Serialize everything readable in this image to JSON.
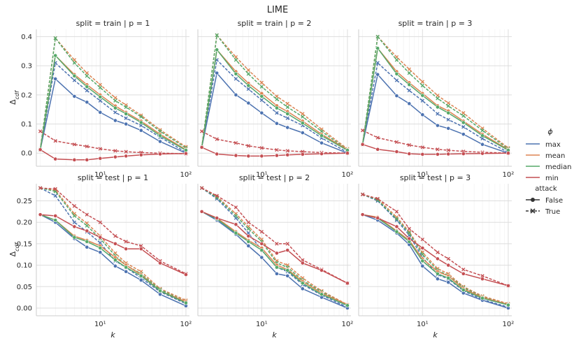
{
  "suptitle": "LIME",
  "legend": {
    "title": "ϕ",
    "entries": [
      "max",
      "mean",
      "median",
      "min"
    ],
    "style_title": "attack",
    "style_entries": [
      "False",
      "True"
    ]
  },
  "colors": {
    "max": "#4c72b0",
    "mean": "#dd8452",
    "median": "#55a868",
    "min": "#c44e52",
    "grid": "#dddddd",
    "spine": "#cccccc"
  },
  "chart_data": [
    {
      "type": "line",
      "title": "split = train | p = 1",
      "xlabel": "",
      "ylabel": "Δ_cdf",
      "xscale": "log",
      "ylim": [
        -0.045,
        0.425
      ],
      "x": [
        2,
        3,
        5,
        7,
        10,
        15,
        20,
        30,
        50,
        100
      ],
      "yticks": [
        0.0,
        0.1,
        0.2,
        0.3,
        0.4
      ],
      "ytick_labels": [
        "0.0",
        "0.1",
        "0.2",
        "0.3",
        "0.4"
      ],
      "xticks": [
        10,
        100
      ],
      "xtick_labels": [
        "10¹",
        "10²"
      ],
      "series": [
        {
          "phi": "max",
          "attack": "False",
          "values": [
            0.012,
            0.255,
            0.195,
            0.175,
            0.14,
            0.112,
            0.1,
            0.078,
            0.04,
            0.0
          ]
        },
        {
          "phi": "max",
          "attack": "True",
          "values": [
            0.012,
            0.31,
            0.25,
            0.215,
            0.18,
            0.14,
            0.12,
            0.095,
            0.055,
            0.003
          ]
        },
        {
          "phi": "mean",
          "attack": "False",
          "values": [
            0.012,
            0.335,
            0.27,
            0.235,
            0.2,
            0.162,
            0.14,
            0.11,
            0.065,
            0.012
          ]
        },
        {
          "phi": "mean",
          "attack": "True",
          "values": [
            0.012,
            0.395,
            0.32,
            0.275,
            0.235,
            0.19,
            0.165,
            0.13,
            0.08,
            0.022
          ]
        },
        {
          "phi": "median",
          "attack": "False",
          "values": [
            0.012,
            0.335,
            0.265,
            0.228,
            0.193,
            0.155,
            0.135,
            0.105,
            0.06,
            0.01
          ]
        },
        {
          "phi": "median",
          "attack": "True",
          "values": [
            0.012,
            0.395,
            0.31,
            0.265,
            0.225,
            0.18,
            0.158,
            0.125,
            0.075,
            0.018
          ]
        },
        {
          "phi": "min",
          "attack": "False",
          "values": [
            0.012,
            -0.02,
            -0.023,
            -0.023,
            -0.018,
            -0.013,
            -0.01,
            -0.006,
            -0.003,
            -0.001
          ]
        },
        {
          "phi": "min",
          "attack": "True",
          "values": [
            0.075,
            0.042,
            0.03,
            0.023,
            0.015,
            0.008,
            0.005,
            0.002,
            0.0,
            -0.002
          ]
        }
      ]
    },
    {
      "type": "line",
      "title": "split = train | p = 2",
      "xlabel": "",
      "ylabel": "",
      "xscale": "log",
      "ylim": [
        -0.045,
        0.425
      ],
      "x": [
        2,
        3,
        5,
        7,
        10,
        15,
        20,
        30,
        50,
        100
      ],
      "yticks": [
        0.0,
        0.1,
        0.2,
        0.3,
        0.4
      ],
      "ytick_labels": [
        "",
        "",
        "",
        "",
        ""
      ],
      "xticks": [
        10,
        100
      ],
      "xtick_labels": [
        "10¹",
        "10²"
      ],
      "series": [
        {
          "phi": "max",
          "attack": "False",
          "values": [
            0.02,
            0.275,
            0.2,
            0.172,
            0.138,
            0.102,
            0.088,
            0.07,
            0.035,
            0.0
          ]
        },
        {
          "phi": "max",
          "attack": "True",
          "values": [
            0.02,
            0.32,
            0.255,
            0.22,
            0.182,
            0.138,
            0.12,
            0.095,
            0.052,
            0.003
          ]
        },
        {
          "phi": "mean",
          "attack": "False",
          "values": [
            0.02,
            0.355,
            0.28,
            0.24,
            0.205,
            0.163,
            0.143,
            0.11,
            0.065,
            0.012
          ]
        },
        {
          "phi": "mean",
          "attack": "True",
          "values": [
            0.02,
            0.405,
            0.33,
            0.285,
            0.242,
            0.195,
            0.17,
            0.135,
            0.082,
            0.015
          ]
        },
        {
          "phi": "median",
          "attack": "False",
          "values": [
            0.02,
            0.355,
            0.272,
            0.232,
            0.195,
            0.155,
            0.135,
            0.103,
            0.06,
            0.01
          ]
        },
        {
          "phi": "median",
          "attack": "True",
          "values": [
            0.02,
            0.405,
            0.32,
            0.272,
            0.228,
            0.185,
            0.158,
            0.125,
            0.075,
            0.012
          ]
        },
        {
          "phi": "min",
          "attack": "False",
          "values": [
            0.02,
            -0.003,
            -0.008,
            -0.01,
            -0.01,
            -0.008,
            -0.006,
            -0.004,
            -0.002,
            0.0
          ]
        },
        {
          "phi": "min",
          "attack": "True",
          "values": [
            0.075,
            0.048,
            0.035,
            0.025,
            0.018,
            0.011,
            0.008,
            0.005,
            0.002,
            0.0
          ]
        }
      ]
    },
    {
      "type": "line",
      "title": "split = train | p = 3",
      "xlabel": "",
      "ylabel": "",
      "xscale": "log",
      "ylim": [
        -0.045,
        0.425
      ],
      "x": [
        2,
        3,
        5,
        7,
        10,
        15,
        20,
        30,
        50,
        100
      ],
      "yticks": [
        0.0,
        0.1,
        0.2,
        0.3,
        0.4
      ],
      "ytick_labels": [
        "",
        "",
        "",
        "",
        ""
      ],
      "xticks": [
        10,
        100
      ],
      "xtick_labels": [
        "10¹",
        "10²"
      ],
      "series": [
        {
          "phi": "max",
          "attack": "False",
          "values": [
            0.03,
            0.27,
            0.197,
            0.17,
            0.132,
            0.095,
            0.085,
            0.065,
            0.03,
            0.0
          ]
        },
        {
          "phi": "max",
          "attack": "True",
          "values": [
            0.03,
            0.31,
            0.25,
            0.215,
            0.18,
            0.135,
            0.115,
            0.09,
            0.05,
            0.003
          ]
        },
        {
          "phi": "mean",
          "attack": "False",
          "values": [
            0.03,
            0.36,
            0.28,
            0.242,
            0.205,
            0.163,
            0.145,
            0.11,
            0.065,
            0.012
          ]
        },
        {
          "phi": "mean",
          "attack": "True",
          "values": [
            0.03,
            0.4,
            0.33,
            0.288,
            0.245,
            0.198,
            0.172,
            0.138,
            0.085,
            0.018
          ]
        },
        {
          "phi": "median",
          "attack": "False",
          "values": [
            0.03,
            0.36,
            0.272,
            0.235,
            0.198,
            0.158,
            0.138,
            0.105,
            0.06,
            0.01
          ]
        },
        {
          "phi": "median",
          "attack": "True",
          "values": [
            0.03,
            0.4,
            0.32,
            0.275,
            0.232,
            0.188,
            0.162,
            0.128,
            0.078,
            0.015
          ]
        },
        {
          "phi": "min",
          "attack": "False",
          "values": [
            0.03,
            0.013,
            0.005,
            -0.002,
            -0.004,
            -0.004,
            -0.003,
            -0.002,
            -0.001,
            0.0
          ]
        },
        {
          "phi": "min",
          "attack": "True",
          "values": [
            0.078,
            0.053,
            0.038,
            0.028,
            0.02,
            0.013,
            0.01,
            0.006,
            0.003,
            0.0
          ]
        }
      ]
    },
    {
      "type": "line",
      "title": "split = test | p = 1",
      "xlabel": "k",
      "ylabel": "Δ_cdf",
      "xscale": "log",
      "ylim": [
        -0.018,
        0.29
      ],
      "x": [
        2,
        3,
        5,
        7,
        10,
        15,
        20,
        30,
        50,
        100
      ],
      "yticks": [
        0.0,
        0.05,
        0.1,
        0.15,
        0.2,
        0.25
      ],
      "ytick_labels": [
        "0.00",
        "0.05",
        "0.10",
        "0.15",
        "0.20",
        "0.25"
      ],
      "xticks": [
        10,
        100
      ],
      "xtick_labels": [
        "10¹",
        "10²"
      ],
      "series": [
        {
          "phi": "max",
          "attack": "False",
          "values": [
            0.218,
            0.2,
            0.162,
            0.142,
            0.13,
            0.098,
            0.085,
            0.065,
            0.032,
            0.005
          ]
        },
        {
          "phi": "max",
          "attack": "True",
          "values": [
            0.28,
            0.262,
            0.2,
            0.178,
            0.152,
            0.11,
            0.095,
            0.07,
            0.038,
            0.01
          ]
        },
        {
          "phi": "mean",
          "attack": "False",
          "values": [
            0.218,
            0.205,
            0.168,
            0.158,
            0.145,
            0.118,
            0.1,
            0.078,
            0.04,
            0.015
          ]
        },
        {
          "phi": "mean",
          "attack": "True",
          "values": [
            0.28,
            0.275,
            0.22,
            0.198,
            0.168,
            0.128,
            0.105,
            0.085,
            0.045,
            0.018
          ]
        },
        {
          "phi": "median",
          "attack": "False",
          "values": [
            0.218,
            0.205,
            0.165,
            0.155,
            0.14,
            0.112,
            0.095,
            0.075,
            0.04,
            0.012
          ]
        },
        {
          "phi": "median",
          "attack": "True",
          "values": [
            0.28,
            0.272,
            0.215,
            0.192,
            0.162,
            0.122,
            0.1,
            0.08,
            0.043,
            0.015
          ]
        },
        {
          "phi": "min",
          "attack": "False",
          "values": [
            0.218,
            0.215,
            0.19,
            0.18,
            0.165,
            0.15,
            0.138,
            0.138,
            0.105,
            0.078
          ]
        },
        {
          "phi": "min",
          "attack": "True",
          "values": [
            0.28,
            0.278,
            0.238,
            0.218,
            0.2,
            0.168,
            0.155,
            0.145,
            0.11,
            0.08
          ]
        }
      ]
    },
    {
      "type": "line",
      "title": "split = test | p = 2",
      "xlabel": "k",
      "ylabel": "",
      "xscale": "log",
      "ylim": [
        -0.018,
        0.29
      ],
      "x": [
        2,
        3,
        5,
        7,
        10,
        15,
        20,
        30,
        50,
        100
      ],
      "yticks": [
        0.0,
        0.05,
        0.1,
        0.15,
        0.2,
        0.25
      ],
      "ytick_labels": [
        "",
        "",
        "",
        "",
        "",
        ""
      ],
      "xticks": [
        10,
        100
      ],
      "xtick_labels": [
        "10¹",
        "10²"
      ],
      "series": [
        {
          "phi": "max",
          "attack": "False",
          "values": [
            0.225,
            0.205,
            0.172,
            0.145,
            0.118,
            0.08,
            0.075,
            0.045,
            0.025,
            0.0
          ]
        },
        {
          "phi": "max",
          "attack": "True",
          "values": [
            0.28,
            0.255,
            0.21,
            0.175,
            0.135,
            0.095,
            0.085,
            0.055,
            0.03,
            0.002
          ]
        },
        {
          "phi": "mean",
          "attack": "False",
          "values": [
            0.225,
            0.21,
            0.178,
            0.158,
            0.14,
            0.1,
            0.09,
            0.062,
            0.035,
            0.008
          ]
        },
        {
          "phi": "mean",
          "attack": "True",
          "values": [
            0.28,
            0.26,
            0.22,
            0.19,
            0.16,
            0.11,
            0.1,
            0.07,
            0.04,
            0.008
          ]
        },
        {
          "phi": "median",
          "attack": "False",
          "values": [
            0.225,
            0.208,
            0.175,
            0.155,
            0.135,
            0.095,
            0.088,
            0.058,
            0.032,
            0.006
          ]
        },
        {
          "phi": "median",
          "attack": "True",
          "values": [
            0.28,
            0.258,
            0.215,
            0.185,
            0.155,
            0.105,
            0.095,
            0.065,
            0.038,
            0.006
          ]
        },
        {
          "phi": "min",
          "attack": "False",
          "values": [
            0.225,
            0.21,
            0.195,
            0.168,
            0.15,
            0.128,
            0.135,
            0.105,
            0.088,
            0.058
          ]
        },
        {
          "phi": "min",
          "attack": "True",
          "values": [
            0.28,
            0.262,
            0.235,
            0.2,
            0.178,
            0.15,
            0.15,
            0.112,
            0.09,
            0.058
          ]
        }
      ]
    },
    {
      "type": "line",
      "title": "split = test | p = 3",
      "xlabel": "k",
      "ylabel": "",
      "xscale": "log",
      "ylim": [
        -0.018,
        0.29
      ],
      "x": [
        2,
        3,
        5,
        7,
        10,
        15,
        20,
        30,
        50,
        100
      ],
      "yticks": [
        0.0,
        0.05,
        0.1,
        0.15,
        0.2,
        0.25
      ],
      "ytick_labels": [
        "",
        "",
        "",
        "",
        "",
        ""
      ],
      "xticks": [
        10,
        100
      ],
      "xtick_labels": [
        "10¹",
        "10²"
      ],
      "series": [
        {
          "phi": "max",
          "attack": "False",
          "values": [
            0.218,
            0.205,
            0.175,
            0.148,
            0.098,
            0.068,
            0.06,
            0.035,
            0.018,
            0.0
          ]
        },
        {
          "phi": "max",
          "attack": "True",
          "values": [
            0.265,
            0.25,
            0.205,
            0.17,
            0.118,
            0.078,
            0.068,
            0.04,
            0.02,
            0.002
          ]
        },
        {
          "phi": "mean",
          "attack": "False",
          "values": [
            0.218,
            0.212,
            0.18,
            0.158,
            0.115,
            0.085,
            0.075,
            0.045,
            0.025,
            0.008
          ]
        },
        {
          "phi": "mean",
          "attack": "True",
          "values": [
            0.265,
            0.255,
            0.212,
            0.178,
            0.13,
            0.092,
            0.08,
            0.05,
            0.028,
            0.01
          ]
        },
        {
          "phi": "median",
          "attack": "False",
          "values": [
            0.218,
            0.21,
            0.178,
            0.155,
            0.11,
            0.08,
            0.07,
            0.042,
            0.023,
            0.007
          ]
        },
        {
          "phi": "median",
          "attack": "True",
          "values": [
            0.265,
            0.252,
            0.208,
            0.175,
            0.125,
            0.088,
            0.076,
            0.048,
            0.026,
            0.008
          ]
        },
        {
          "phi": "min",
          "attack": "False",
          "values": [
            0.218,
            0.21,
            0.19,
            0.162,
            0.14,
            0.115,
            0.1,
            0.08,
            0.068,
            0.052
          ]
        },
        {
          "phi": "min",
          "attack": "True",
          "values": [
            0.265,
            0.255,
            0.225,
            0.185,
            0.16,
            0.13,
            0.115,
            0.09,
            0.075,
            0.052
          ]
        }
      ]
    }
  ]
}
